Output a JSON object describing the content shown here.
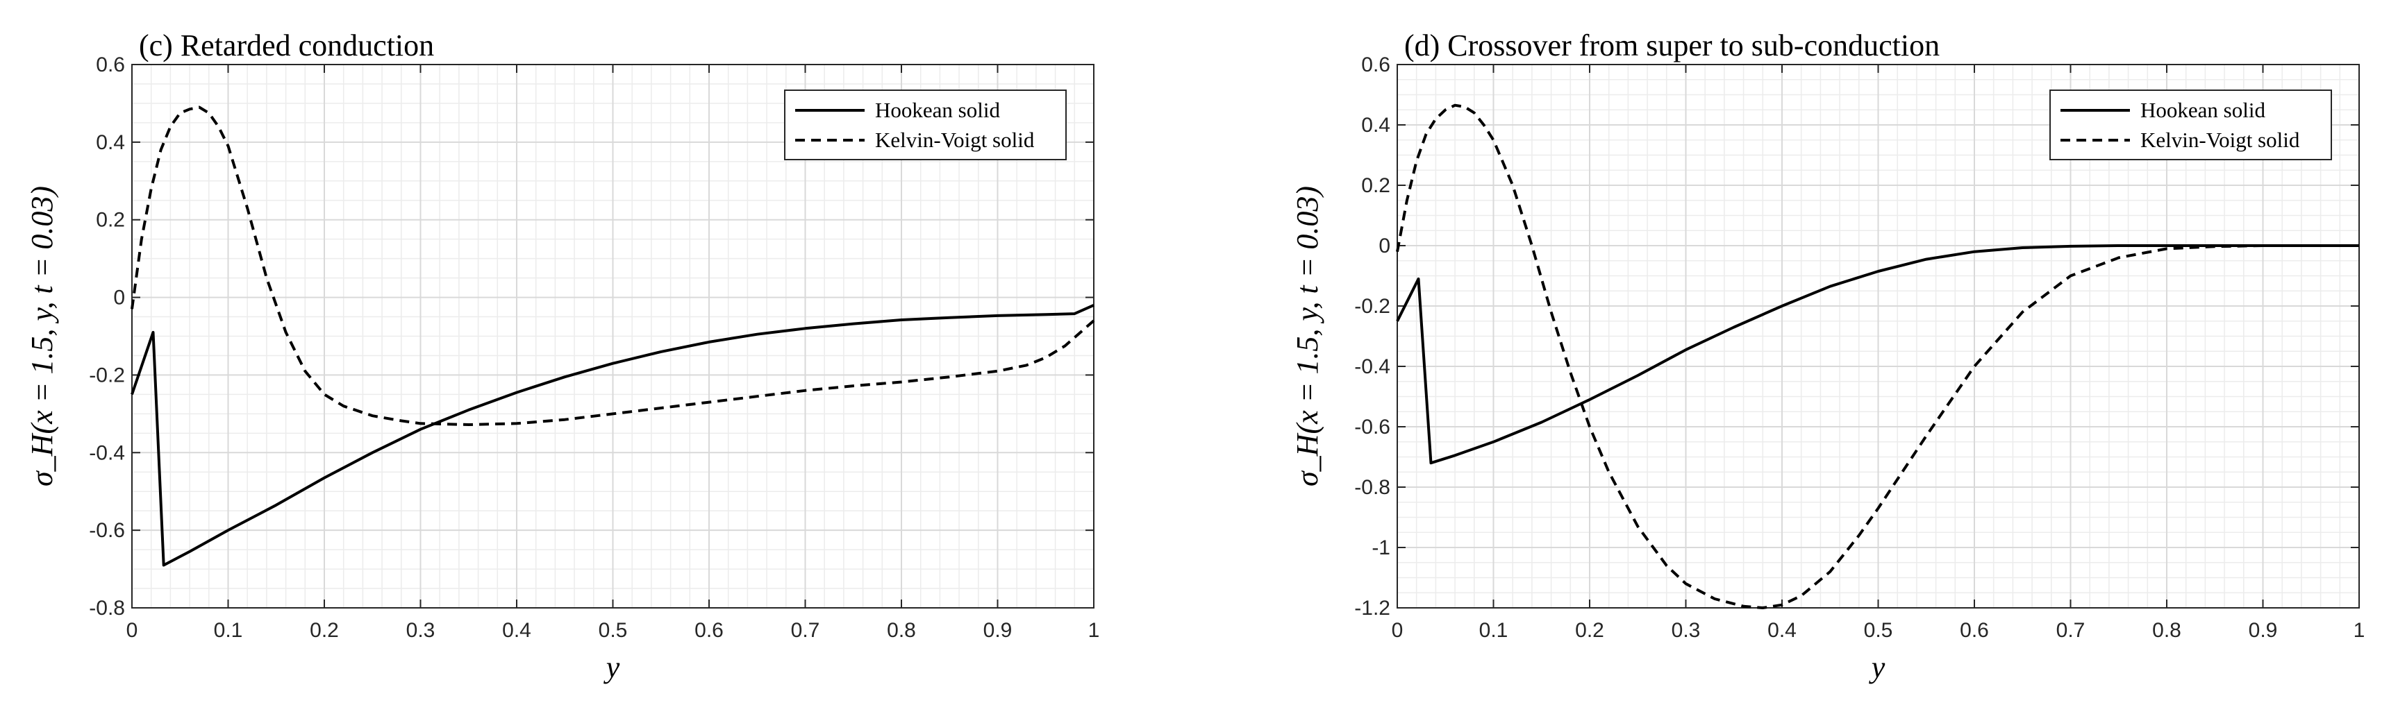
{
  "chart_data": [
    {
      "type": "line",
      "title": "(c) Retarded conduction",
      "xlabel": "y",
      "ylabel": "σ_H(x = 1.5, y, t = 0.03)",
      "xlim": [
        0,
        1
      ],
      "ylim": [
        -0.8,
        0.6
      ],
      "xticks": [
        0,
        0.1,
        0.2,
        0.3,
        0.4,
        0.5,
        0.6,
        0.7,
        0.8,
        0.9,
        1
      ],
      "xtick_labels": [
        "0",
        "0.1",
        "0.2",
        "0.3",
        "0.4",
        "0.5",
        "0.6",
        "0.7",
        "0.8",
        "0.9",
        "1"
      ],
      "yticks": [
        -0.8,
        -0.6,
        -0.4,
        -0.2,
        0,
        0.2,
        0.4,
        0.6
      ],
      "ytick_labels": [
        "-0.8",
        "-0.6",
        "-0.4",
        "-0.2",
        "0",
        "0.2",
        "0.4",
        "0.6"
      ],
      "grid": "major and minor",
      "legend_position": "top-right",
      "series": [
        {
          "name": "Hookean solid",
          "style": "solid",
          "x": [
            0,
            0.022,
            0.033,
            0.06,
            0.1,
            0.15,
            0.2,
            0.25,
            0.3,
            0.35,
            0.4,
            0.45,
            0.5,
            0.55,
            0.6,
            0.65,
            0.7,
            0.75,
            0.8,
            0.85,
            0.9,
            0.95,
            0.98,
            1.0
          ],
          "y": [
            -0.25,
            -0.09,
            -0.69,
            -0.655,
            -0.6,
            -0.535,
            -0.465,
            -0.4,
            -0.34,
            -0.29,
            -0.245,
            -0.205,
            -0.17,
            -0.14,
            -0.115,
            -0.095,
            -0.08,
            -0.068,
            -0.058,
            -0.052,
            -0.047,
            -0.044,
            -0.042,
            -0.02
          ]
        },
        {
          "name": "Kelvin-Voigt solid",
          "style": "dashed",
          "x": [
            0,
            0.01,
            0.02,
            0.03,
            0.04,
            0.05,
            0.06,
            0.07,
            0.08,
            0.09,
            0.1,
            0.12,
            0.14,
            0.16,
            0.18,
            0.2,
            0.22,
            0.25,
            0.28,
            0.3,
            0.35,
            0.4,
            0.45,
            0.5,
            0.55,
            0.6,
            0.65,
            0.7,
            0.75,
            0.8,
            0.85,
            0.9,
            0.93,
            0.95,
            0.97,
            1.0
          ],
          "y": [
            -0.03,
            0.15,
            0.28,
            0.38,
            0.44,
            0.475,
            0.485,
            0.49,
            0.475,
            0.44,
            0.39,
            0.23,
            0.05,
            -0.09,
            -0.19,
            -0.25,
            -0.28,
            -0.305,
            -0.318,
            -0.325,
            -0.328,
            -0.325,
            -0.315,
            -0.3,
            -0.285,
            -0.27,
            -0.255,
            -0.24,
            -0.228,
            -0.218,
            -0.205,
            -0.19,
            -0.175,
            -0.155,
            -0.125,
            -0.06
          ]
        }
      ]
    },
    {
      "type": "line",
      "title": "(d) Crossover from super to sub-conduction",
      "xlabel": "y",
      "ylabel": "σ_H(x = 1.5, y, t = 0.03)",
      "xlim": [
        0,
        1
      ],
      "ylim": [
        -1.2,
        0.6
      ],
      "xticks": [
        0,
        0.1,
        0.2,
        0.3,
        0.4,
        0.5,
        0.6,
        0.7,
        0.8,
        0.9,
        1
      ],
      "xtick_labels": [
        "0",
        "0.1",
        "0.2",
        "0.3",
        "0.4",
        "0.5",
        "0.6",
        "0.7",
        "0.8",
        "0.9",
        "1"
      ],
      "yticks": [
        -1.2,
        -1,
        -0.8,
        -0.6,
        -0.4,
        -0.2,
        0,
        0.2,
        0.4,
        0.6
      ],
      "ytick_labels": [
        "-1.2",
        "-1",
        "-0.8",
        "-0.6",
        "-0.4",
        "-0.2",
        "0",
        "0.2",
        "0.4",
        "0.6"
      ],
      "grid": "major and minor",
      "legend_position": "top-right",
      "series": [
        {
          "name": "Hookean solid",
          "style": "solid",
          "x": [
            0,
            0.022,
            0.035,
            0.06,
            0.1,
            0.15,
            0.2,
            0.25,
            0.3,
            0.35,
            0.4,
            0.45,
            0.5,
            0.55,
            0.6,
            0.65,
            0.7,
            0.75,
            0.8,
            0.85,
            0.9,
            0.95,
            1.0
          ],
          "y": [
            -0.25,
            -0.11,
            -0.72,
            -0.695,
            -0.65,
            -0.585,
            -0.51,
            -0.43,
            -0.345,
            -0.27,
            -0.2,
            -0.135,
            -0.085,
            -0.045,
            -0.02,
            -0.007,
            -0.002,
            0,
            0,
            0,
            0,
            0,
            0
          ]
        },
        {
          "name": "Kelvin-Voigt solid",
          "style": "dashed",
          "x": [
            0,
            0.01,
            0.02,
            0.03,
            0.04,
            0.05,
            0.06,
            0.07,
            0.08,
            0.09,
            0.1,
            0.12,
            0.14,
            0.16,
            0.18,
            0.2,
            0.22,
            0.25,
            0.28,
            0.3,
            0.33,
            0.36,
            0.38,
            0.4,
            0.42,
            0.45,
            0.48,
            0.5,
            0.55,
            0.6,
            0.65,
            0.7,
            0.75,
            0.8,
            0.85,
            0.9,
            1.0
          ],
          "y": [
            -0.02,
            0.15,
            0.28,
            0.37,
            0.42,
            0.45,
            0.465,
            0.46,
            0.44,
            0.4,
            0.35,
            0.2,
            0.0,
            -0.22,
            -0.42,
            -0.6,
            -0.75,
            -0.93,
            -1.06,
            -1.12,
            -1.17,
            -1.195,
            -1.2,
            -1.19,
            -1.16,
            -1.08,
            -0.96,
            -0.87,
            -0.63,
            -0.4,
            -0.22,
            -0.1,
            -0.04,
            -0.01,
            -0.003,
            0,
            0
          ]
        }
      ]
    }
  ]
}
